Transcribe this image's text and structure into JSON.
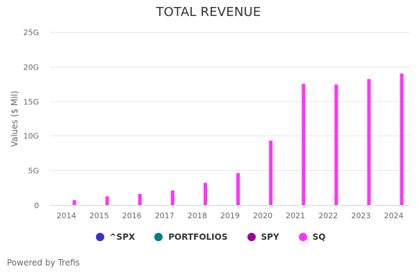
{
  "chart_data": {
    "type": "bar",
    "title": "TOTAL REVENUE",
    "xlabel": "",
    "ylabel": "Values ($ Mil)",
    "categories": [
      "2014",
      "2015",
      "2016",
      "2017",
      "2018",
      "2019",
      "2020",
      "2021",
      "2022",
      "2023",
      "2024"
    ],
    "ylim": [
      0,
      25
    ],
    "yticks": [
      0,
      5,
      10,
      15,
      20,
      25
    ],
    "ytick_labels": [
      "0",
      "5G",
      "10G",
      "15G",
      "20G",
      "25G"
    ],
    "y_unit": "G",
    "grid": true,
    "legend_position": "bottom",
    "series": [
      {
        "name": "^SPX",
        "color": "#3333cc",
        "values": [
          null,
          null,
          null,
          null,
          null,
          null,
          null,
          null,
          null,
          null,
          null
        ]
      },
      {
        "name": "PORTFOLIOS",
        "color": "#008080",
        "values": [
          null,
          null,
          null,
          null,
          null,
          null,
          null,
          null,
          null,
          null,
          null
        ]
      },
      {
        "name": "SPY",
        "color": "#990099",
        "values": [
          null,
          null,
          null,
          null,
          null,
          null,
          null,
          null,
          null,
          null,
          null
        ]
      },
      {
        "name": "SQ",
        "color": "#ff33ff",
        "values": [
          0.7,
          1.25,
          1.6,
          2.1,
          3.2,
          4.6,
          9.3,
          17.5,
          17.4,
          18.2,
          19.0
        ]
      }
    ]
  },
  "footer": {
    "text": "Powered by Trefis"
  },
  "colors": {
    "grid": "#e6e6e6",
    "axis": "#ccd6eb",
    "text": "#666666",
    "title": "#333333"
  }
}
